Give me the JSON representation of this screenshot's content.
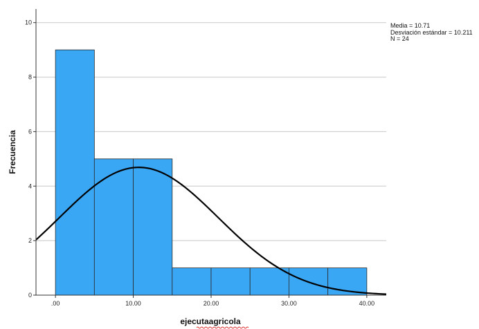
{
  "chart_data": {
    "type": "bar",
    "subtype": "histogram",
    "xlabel": "ejecutaagricola",
    "ylabel": "Frecuencia",
    "x_ticks": [
      ".00",
      "10.00",
      "20.00",
      "30.00",
      "40.00"
    ],
    "x_tick_values": [
      0,
      10,
      20,
      30,
      40
    ],
    "y_ticks": [
      "0",
      "2",
      "4",
      "6",
      "8",
      "10"
    ],
    "y_tick_values": [
      0,
      2,
      4,
      6,
      8,
      10
    ],
    "xlim": [
      -2.5,
      42.5
    ],
    "ylim": [
      0,
      10.5
    ],
    "bins": [
      {
        "start": 0,
        "end": 5,
        "count": 9
      },
      {
        "start": 5,
        "end": 10,
        "count": 5
      },
      {
        "start": 10,
        "end": 15,
        "count": 5
      },
      {
        "start": 15,
        "end": 20,
        "count": 1
      },
      {
        "start": 20,
        "end": 25,
        "count": 1
      },
      {
        "start": 25,
        "end": 30,
        "count": 1
      },
      {
        "start": 30,
        "end": 35,
        "count": 1
      },
      {
        "start": 35,
        "end": 40,
        "count": 1
      }
    ],
    "normal_curve": {
      "mean": 10.71,
      "sd": 10.211,
      "n": 24,
      "bin_width": 5
    },
    "stats_lines": [
      "Media = 10.71",
      "Desviación estándar = 10.211",
      "N = 24"
    ],
    "grid": true,
    "bar_color": "#3aa7f5",
    "bar_edge_color": "#2a2a2a",
    "curve_color": "#000000",
    "grid_color": "#c8c8c8"
  }
}
